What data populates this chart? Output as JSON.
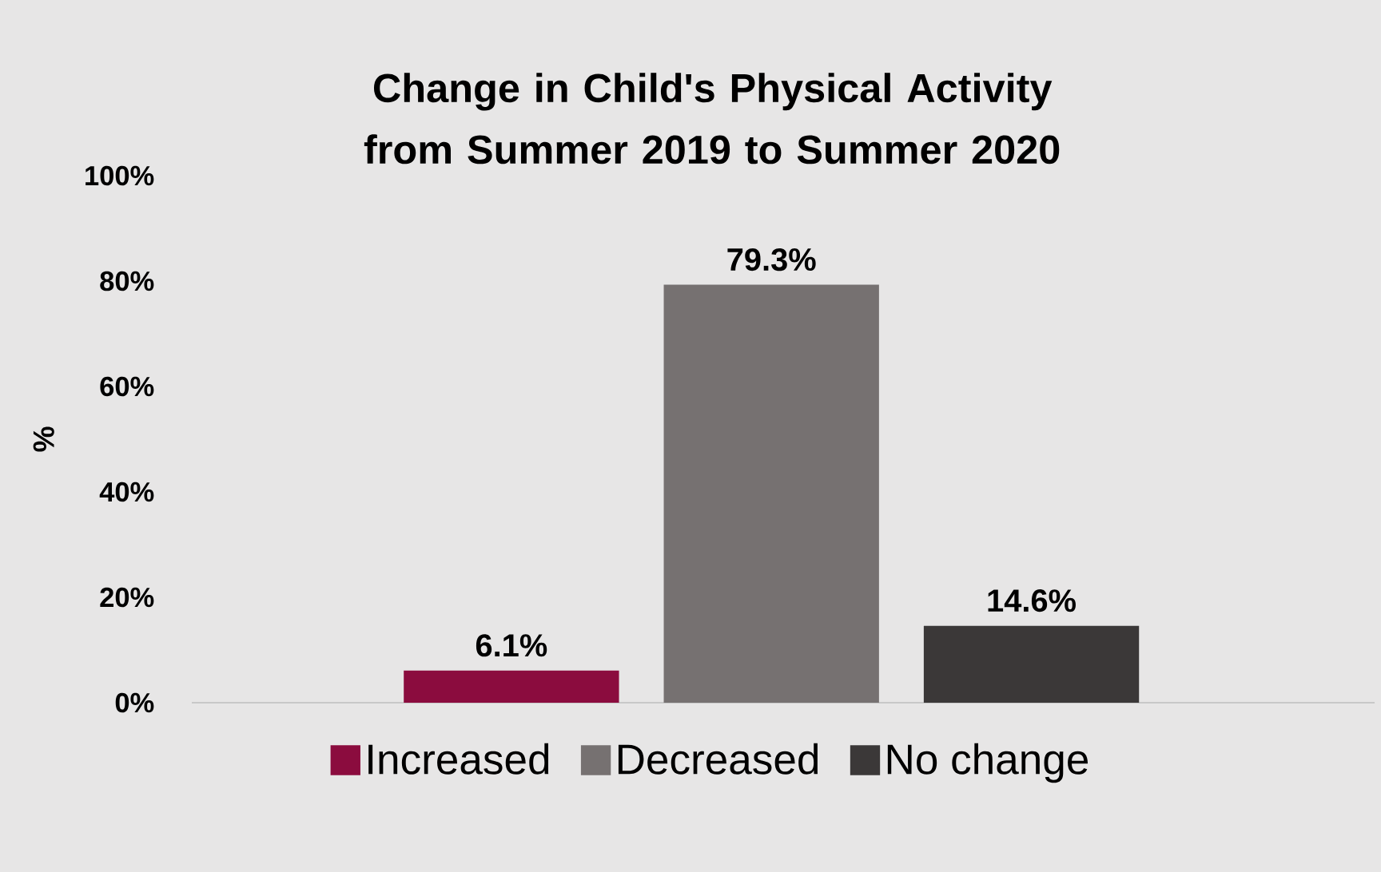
{
  "chart_data": {
    "type": "bar",
    "title": "Change in Child's Physical Activity from Summer 2019 to Summer 2020",
    "ylabel": "%",
    "categories": [
      null
    ],
    "series": [
      {
        "name": "Increased",
        "color": "#8b0c3e",
        "values": [
          6.1
        ],
        "value_labels": [
          "6.1%"
        ]
      },
      {
        "name": "Decreased",
        "color": "#767171",
        "values": [
          79.3
        ],
        "value_labels": [
          "79.3%"
        ]
      },
      {
        "name": "No change",
        "color": "#3b3838",
        "values": [
          14.6
        ],
        "value_labels": [
          "14.6%"
        ]
      }
    ],
    "ylim": [
      0,
      100
    ],
    "yticks": [
      {
        "value": 0,
        "label": "0%"
      },
      {
        "value": 20,
        "label": "20%"
      },
      {
        "value": 40,
        "label": "40%"
      },
      {
        "value": 60,
        "label": "60%"
      },
      {
        "value": 80,
        "label": "80%"
      },
      {
        "value": 100,
        "label": "100%"
      }
    ],
    "grid": false,
    "legend": "bottom"
  }
}
